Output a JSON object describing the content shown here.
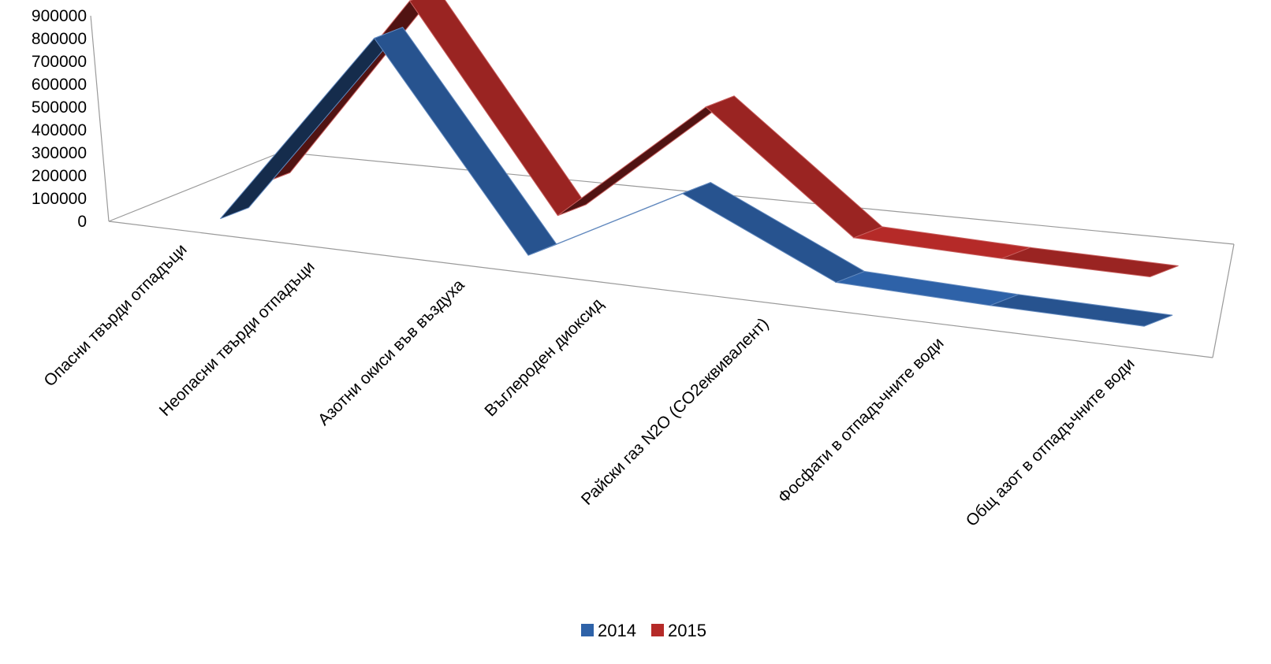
{
  "chart_data": {
    "type": "line",
    "style": "3d-ribbon",
    "categories": [
      "Опасни твърди отпадъци",
      "Неопасни твърди отпадъци",
      "Азотни окиси във въздуха",
      "Въглероден диоксид",
      "Райски газ N2O (CO2еквивалент)",
      "Фосфати в отпадъчните води",
      "Общ азот в отпадъчните води"
    ],
    "series": [
      {
        "name": "2014",
        "color": "#2E62A8",
        "values": [
          0,
          830000,
          0,
          335000,
          40000,
          20000,
          10000
        ]
      },
      {
        "name": "2015",
        "color": "#B52A28",
        "values": [
          0,
          830000,
          0,
          520000,
          40000,
          20000,
          10000
        ]
      }
    ],
    "yticks": [
      0,
      100000,
      200000,
      300000,
      400000,
      500000,
      600000,
      700000,
      800000,
      900000
    ],
    "ylim": [
      0,
      900000
    ],
    "legend_position": "bottom",
    "grid": false
  }
}
